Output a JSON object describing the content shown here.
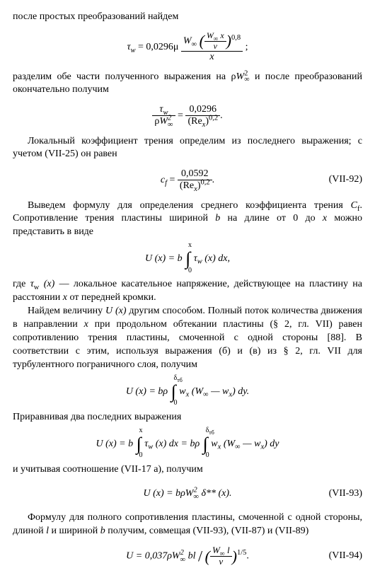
{
  "p1": "после простых преобразований найдем",
  "eq1_lhs": "τ",
  "eq1_sub_w": "w",
  "eq1_eq": " = 0,0296μ ",
  "eq1_Winf": "W",
  "eq1_inf": "∞",
  "eq1_x": "x",
  "eq1_nu": "ν",
  "eq1_exp": "0,8",
  "eq1_semi": ";",
  "p2_a": "разделим обе части полученного выражения на ρ",
  "p2_b": " и после преобразований окончательно получим",
  "p2_Winf": "W",
  "p2_inf": "∞",
  "p2_sq": "2",
  "eq2_num_tau": "τ",
  "eq2_num_w": "w",
  "eq2_den_rho": "ρ",
  "eq2_den_W": "W",
  "eq2_den_inf": "∞",
  "eq2_den_sq": "2",
  "eq2_eq": " = ",
  "eq2_rhs_num": "0,0296",
  "eq2_rhs_den_re": "(Re",
  "eq2_rhs_den_x": "x",
  "eq2_rhs_den_exp": "0,2",
  "eq2_dot": ".",
  "p3": "Локальный коэффициент трения определим из последнего выражения; с учетом (VII-25) он равен",
  "eq3_lhs": "c",
  "eq3_f": "f",
  "eq3_eq": " = ",
  "eq3_num": "0,0592",
  "eq3_den_re": "(Re",
  "eq3_den_x": "x",
  "eq3_den_exp": "0,2",
  "eq3_dot": ".",
  "eq3_num_label": "(VII-92)",
  "p4_a": "Выведем формулу для определения среднего коэффициента трения ",
  "p4_Cf_C": "C",
  "p4_Cf_f": "f",
  "p4_b": ". Сопротивление трения пластины шириной ",
  "p4_b_var": "b",
  "p4_c": " на длине от 0 до ",
  "p4_x": "x",
  "p4_d": " можно представить в виде",
  "eq4_Ux": "U (x) = b",
  "eq4_tau": "τ",
  "eq4_w": "w",
  "eq4_rest": " (x) dx,",
  "eq4_ub": "x",
  "eq4_lb": "0",
  "p5_a": "где ",
  "p5_tau": "τ",
  "p5_w": "w",
  "p5_x": " (x)",
  "p5_b": " — локальное касательное напряжение, действующее на пластину на расстоянии ",
  "p5_xvar": "x",
  "p5_c": " от передней кромки.",
  "p6_a": "Найдем величину ",
  "p6_Ux": "U (x)",
  "p6_b": " другим способом. Полный поток количества движения в направлении ",
  "p6_x": "x",
  "p6_c": " при продольном обтекании пластины (§ 2, гл. VII) равен сопротивлению трения пластины, смоченной с одной стороны [88]. В соответствии с этим, используя выражения (б) и (в) из § 2, гл. VII для турбулентного пограничного слоя, получим",
  "eq5_Ux": "U (x) = bρ",
  "eq5_ub": "δ",
  "eq5_ub2": "тб",
  "eq5_lb": "0",
  "eq5_wx": "w",
  "eq5_wx_sub": "x",
  "eq5_Winf": " (W",
  "eq5_inf": "∞",
  "eq5_minus": " — w",
  "eq5_rest": ") dy.",
  "p7": "Приравнивая два последних выражения",
  "eq6_lhs": "U (x) = b",
  "eq6_tau": "τ",
  "eq6_w": "w",
  "eq6_mid": " (x) dx = bρ",
  "eq6_wx": "w",
  "eq6_wx_sub": "x",
  "eq6_Winf": " (W",
  "eq6_inf": "∞",
  "eq6_minus": " — w",
  "eq6_rest": ") dy",
  "p8": "и учитывая соотношение (VII-17 а), получим",
  "eq7_lhs": "U (x) = bρW",
  "eq7_inf": "∞",
  "eq7_sq": "2",
  "eq7_delta": " δ** (x).",
  "eq7_num_label": "(VII-93)",
  "p9_a": "Формулу для полного сопротивления пластины, смоченной с одной стороны, длиной ",
  "p9_l": "l",
  "p9_b": " и шириной ",
  "p9_bvar": "b",
  "p9_c": " получим, совмещая (VII-93), (VII-87) и (VII-89)",
  "eq8_lhs": "U = 0,037ρW",
  "eq8_inf": "∞",
  "eq8_sq": "2",
  "eq8_bl": " bl ",
  "eq8_slash": "/",
  "eq8_Winf": "W",
  "eq8_inf2": "∞",
  "eq8_l": " l",
  "eq8_nu": "ν",
  "eq8_exp": "1/5",
  "eq8_dot": ".",
  "eq8_num_label": "(VII-94)"
}
